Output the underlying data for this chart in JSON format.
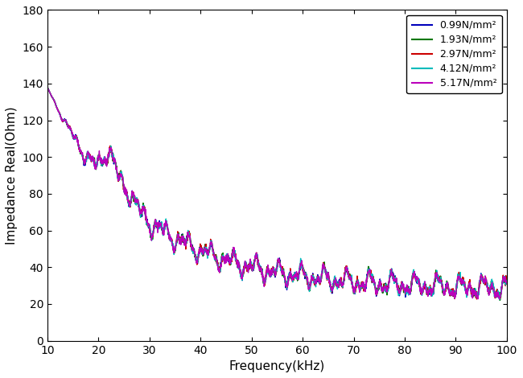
{
  "title": "",
  "xlabel": "Frequency(kHz)",
  "ylabel": "Impedance Real(Ohm)",
  "xlim": [
    10,
    100
  ],
  "ylim": [
    0,
    180
  ],
  "xticks": [
    10,
    20,
    30,
    40,
    50,
    60,
    70,
    80,
    90,
    100
  ],
  "yticks": [
    0,
    20,
    40,
    60,
    80,
    100,
    120,
    140,
    160,
    180
  ],
  "legend_labels": [
    "0.99N/mm²",
    "1.93N/mm²",
    "2.97N/mm²",
    "4.12N/mm²",
    "5.17N/mm²"
  ],
  "legend_colors": [
    "#0000bb",
    "#007700",
    "#cc0000",
    "#00bbbb",
    "#bb00bb"
  ],
  "line_colors": [
    "#0000bb",
    "#007700",
    "#cc0000",
    "#00bbbb",
    "#bb00bb"
  ],
  "background_color": "#ffffff",
  "freq_start": 10,
  "freq_end": 100,
  "num_points": 2000
}
